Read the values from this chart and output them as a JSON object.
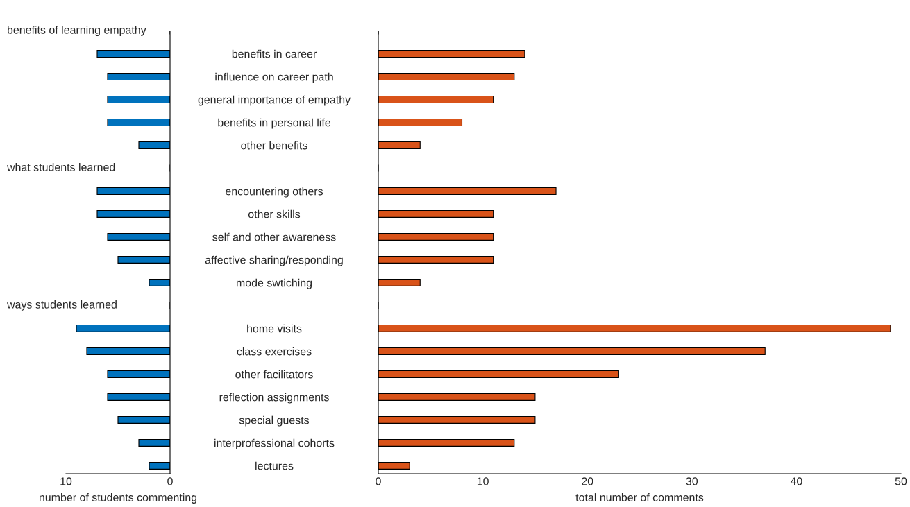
{
  "chart_data": [
    {
      "type": "bar",
      "orientation": "horizontal",
      "xlabel": "number of students commenting",
      "categories": [
        null,
        null,
        null,
        null,
        null,
        null,
        null,
        null,
        null,
        null,
        null,
        null,
        null,
        null,
        null,
        null,
        null,
        null,
        null,
        null
      ],
      "series": [
        {
          "color": "#0072bd",
          "values": [
            null,
            7,
            6,
            6,
            6,
            3,
            null,
            7,
            7,
            6,
            5,
            2,
            null,
            9,
            8,
            6,
            6,
            5,
            3,
            2
          ]
        }
      ],
      "xlim": [
        10,
        0
      ],
      "xticks": [
        10,
        0
      ],
      "tick_labels": "x",
      "grid": false,
      "legend": false,
      "annotations": [
        "benefits of learning empathy",
        "what students learned",
        "ways students learned"
      ]
    },
    {
      "type": "bar",
      "orientation": "horizontal",
      "xlabel": "total number of comments",
      "categories": [
        null,
        "benefits in career",
        "influence on career path",
        "general importance of empathy",
        "benefits in personal life",
        "other benefits",
        null,
        "encountering others",
        "other skills",
        "self and other awareness",
        "affective sharing/responding",
        "mode swtiching",
        null,
        "home visits",
        "class exercises",
        "other facilitators",
        "reflection assignments",
        "special guests",
        "interprofessional cohorts",
        "lectures"
      ],
      "series": [
        {
          "color": "#d95319",
          "values": [
            null,
            14,
            13,
            11,
            8,
            4,
            null,
            17,
            11,
            11,
            11,
            4,
            null,
            49,
            37,
            23,
            15,
            15,
            13,
            3
          ]
        }
      ],
      "xlim": [
        0,
        50
      ],
      "xticks": [
        0,
        10,
        20,
        30,
        40,
        50
      ],
      "grid": false,
      "legend": false
    }
  ]
}
